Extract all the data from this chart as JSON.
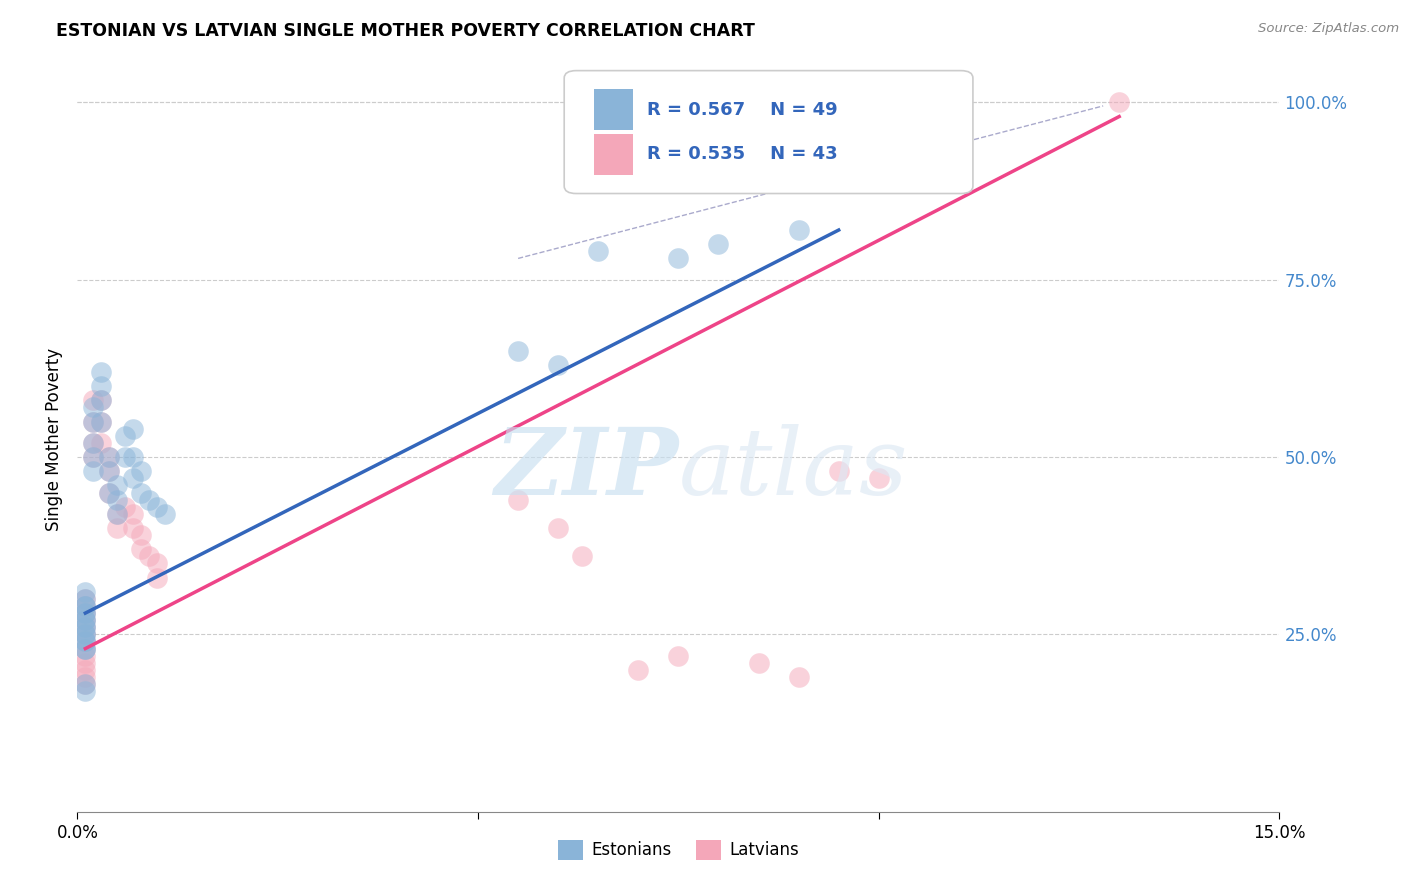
{
  "title": "ESTONIAN VS LATVIAN SINGLE MOTHER POVERTY CORRELATION CHART",
  "source": "Source: ZipAtlas.com",
  "ylabel": "Single Mother Poverty",
  "xlim": [
    0.0,
    0.15
  ],
  "ylim": [
    0.0,
    1.05
  ],
  "yticks_right": [
    0.25,
    0.5,
    0.75,
    1.0
  ],
  "ytick_labels_right": [
    "25.0%",
    "50.0%",
    "75.0%",
    "100.0%"
  ],
  "watermark_zip": "ZIP",
  "watermark_atlas": "atlas",
  "blue_color": "#8ab4d8",
  "pink_color": "#f4a7b9",
  "blue_line_color": "#3366bb",
  "pink_line_color": "#ee4488",
  "legend_text_color": "#3366bb",
  "estonians_x": [
    0.001,
    0.001,
    0.001,
    0.001,
    0.001,
    0.001,
    0.001,
    0.001,
    0.001,
    0.001,
    0.001,
    0.001,
    0.001,
    0.001,
    0.001,
    0.001,
    0.001,
    0.001,
    0.002,
    0.002,
    0.002,
    0.002,
    0.002,
    0.003,
    0.003,
    0.003,
    0.003,
    0.004,
    0.004,
    0.004,
    0.005,
    0.005,
    0.005,
    0.006,
    0.006,
    0.007,
    0.007,
    0.007,
    0.008,
    0.008,
    0.009,
    0.01,
    0.011,
    0.055,
    0.06,
    0.065,
    0.075,
    0.08,
    0.09
  ],
  "estonians_y": [
    0.28,
    0.29,
    0.3,
    0.31,
    0.29,
    0.28,
    0.27,
    0.27,
    0.26,
    0.26,
    0.25,
    0.25,
    0.24,
    0.24,
    0.23,
    0.23,
    0.18,
    0.17,
    0.57,
    0.55,
    0.52,
    0.5,
    0.48,
    0.62,
    0.6,
    0.58,
    0.55,
    0.5,
    0.48,
    0.45,
    0.46,
    0.44,
    0.42,
    0.53,
    0.5,
    0.54,
    0.5,
    0.47,
    0.48,
    0.45,
    0.44,
    0.43,
    0.42,
    0.65,
    0.63,
    0.79,
    0.78,
    0.8,
    0.82
  ],
  "latvians_x": [
    0.001,
    0.001,
    0.001,
    0.001,
    0.001,
    0.001,
    0.001,
    0.001,
    0.001,
    0.001,
    0.001,
    0.001,
    0.001,
    0.002,
    0.002,
    0.002,
    0.002,
    0.003,
    0.003,
    0.003,
    0.004,
    0.004,
    0.004,
    0.005,
    0.005,
    0.006,
    0.007,
    0.007,
    0.008,
    0.008,
    0.009,
    0.01,
    0.01,
    0.055,
    0.06,
    0.063,
    0.07,
    0.075,
    0.085,
    0.09,
    0.095,
    0.1,
    0.13
  ],
  "latvians_y": [
    0.29,
    0.3,
    0.28,
    0.27,
    0.26,
    0.25,
    0.24,
    0.23,
    0.22,
    0.21,
    0.2,
    0.19,
    0.18,
    0.58,
    0.55,
    0.52,
    0.5,
    0.58,
    0.55,
    0.52,
    0.5,
    0.48,
    0.45,
    0.42,
    0.4,
    0.43,
    0.42,
    0.4,
    0.39,
    0.37,
    0.36,
    0.35,
    0.33,
    0.44,
    0.4,
    0.36,
    0.2,
    0.22,
    0.21,
    0.19,
    0.48,
    0.47,
    1.0
  ],
  "blue_line_x": [
    0.001,
    0.095
  ],
  "blue_line_y": [
    0.28,
    0.82
  ],
  "pink_line_x": [
    0.001,
    0.13
  ],
  "pink_line_y": [
    0.23,
    0.98
  ],
  "dash_line_x": [
    0.055,
    0.128
  ],
  "dash_line_y": [
    0.78,
    0.995
  ]
}
